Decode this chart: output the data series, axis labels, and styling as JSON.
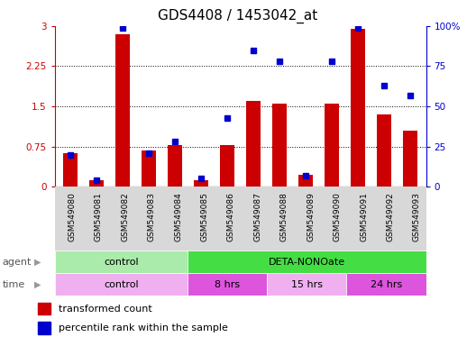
{
  "title": "GDS4408 / 1453042_at",
  "samples": [
    "GSM549080",
    "GSM549081",
    "GSM549082",
    "GSM549083",
    "GSM549084",
    "GSM549085",
    "GSM549086",
    "GSM549087",
    "GSM549088",
    "GSM549089",
    "GSM549090",
    "GSM549091",
    "GSM549092",
    "GSM549093"
  ],
  "transformed_count": [
    0.62,
    0.12,
    2.85,
    0.68,
    0.78,
    0.12,
    0.78,
    1.6,
    1.55,
    0.22,
    1.55,
    2.95,
    1.35,
    1.05
  ],
  "percentile_rank": [
    20,
    4,
    99,
    21,
    28,
    5,
    43,
    85,
    78,
    7,
    78,
    99,
    63,
    57
  ],
  "bar_color": "#cc0000",
  "dot_color": "#0000cc",
  "ylim_left": [
    0,
    3
  ],
  "ylim_right": [
    0,
    100
  ],
  "yticks_left": [
    0,
    0.75,
    1.5,
    2.25,
    3
  ],
  "yticks_right": [
    0,
    25,
    50,
    75,
    100
  ],
  "ytick_labels_left": [
    "0",
    "0.75",
    "1.5",
    "2.25",
    "3"
  ],
  "ytick_labels_right": [
    "0",
    "25",
    "50",
    "75",
    "100%"
  ],
  "agent_groups": [
    {
      "label": "control",
      "start": 0,
      "end": 5,
      "color": "#aaeaaa"
    },
    {
      "label": "DETA-NONOate",
      "start": 5,
      "end": 14,
      "color": "#44dd44"
    }
  ],
  "time_groups": [
    {
      "label": "control",
      "start": 0,
      "end": 5,
      "color": "#f0b0f0"
    },
    {
      "label": "8 hrs",
      "start": 5,
      "end": 8,
      "color": "#dd55dd"
    },
    {
      "label": "15 hrs",
      "start": 8,
      "end": 11,
      "color": "#f0b0f0"
    },
    {
      "label": "24 hrs",
      "start": 11,
      "end": 14,
      "color": "#dd55dd"
    }
  ],
  "legend_bar_label": "transformed count",
  "legend_dot_label": "percentile rank within the sample",
  "background_color": "#ffffff",
  "plot_bg_color": "#ffffff",
  "xtick_bg_color": "#d8d8d8",
  "title_fontsize": 11,
  "tick_fontsize": 7.5,
  "bar_width": 0.55
}
